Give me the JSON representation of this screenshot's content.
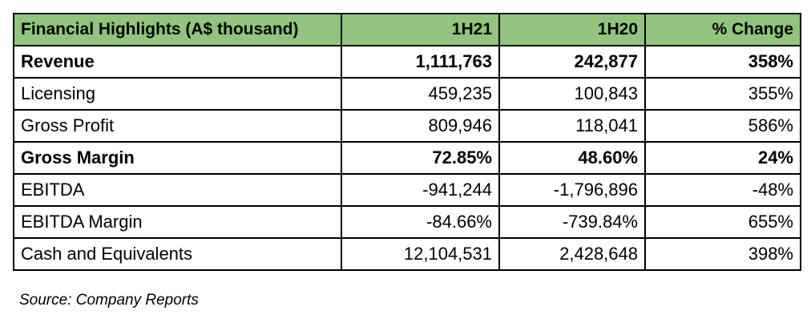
{
  "table": {
    "headers": [
      "Financial Highlights (A$ thousand)",
      "1H21",
      "1H20",
      "% Change"
    ],
    "rows": [
      {
        "label": "Revenue",
        "h21": "1,111,763",
        "h20": "242,877",
        "change": "358%",
        "bold": true
      },
      {
        "label": "Licensing",
        "h21": "459,235",
        "h20": "100,843",
        "change": "355%",
        "bold": false
      },
      {
        "label": "Gross Profit",
        "h21": "809,946",
        "h20": "118,041",
        "change": "586%",
        "bold": false
      },
      {
        "label": "Gross Margin",
        "h21": "72.85%",
        "h20": "48.60%",
        "change": "24%",
        "bold": true
      },
      {
        "label": "EBITDA",
        "h21": "-941,244",
        "h20": "-1,796,896",
        "change": "-48%",
        "bold": false
      },
      {
        "label": "EBITDA Margin",
        "h21": "-84.66%",
        "h20": "-739.84%",
        "change": "655%",
        "bold": false
      },
      {
        "label": "Cash and Equivalents",
        "h21": "12,104,531",
        "h20": "2,428,648",
        "change": "398%",
        "bold": false
      }
    ]
  },
  "source": "Source: Company Reports",
  "colors": {
    "header_bg": "#93c47d",
    "border": "#000000"
  }
}
